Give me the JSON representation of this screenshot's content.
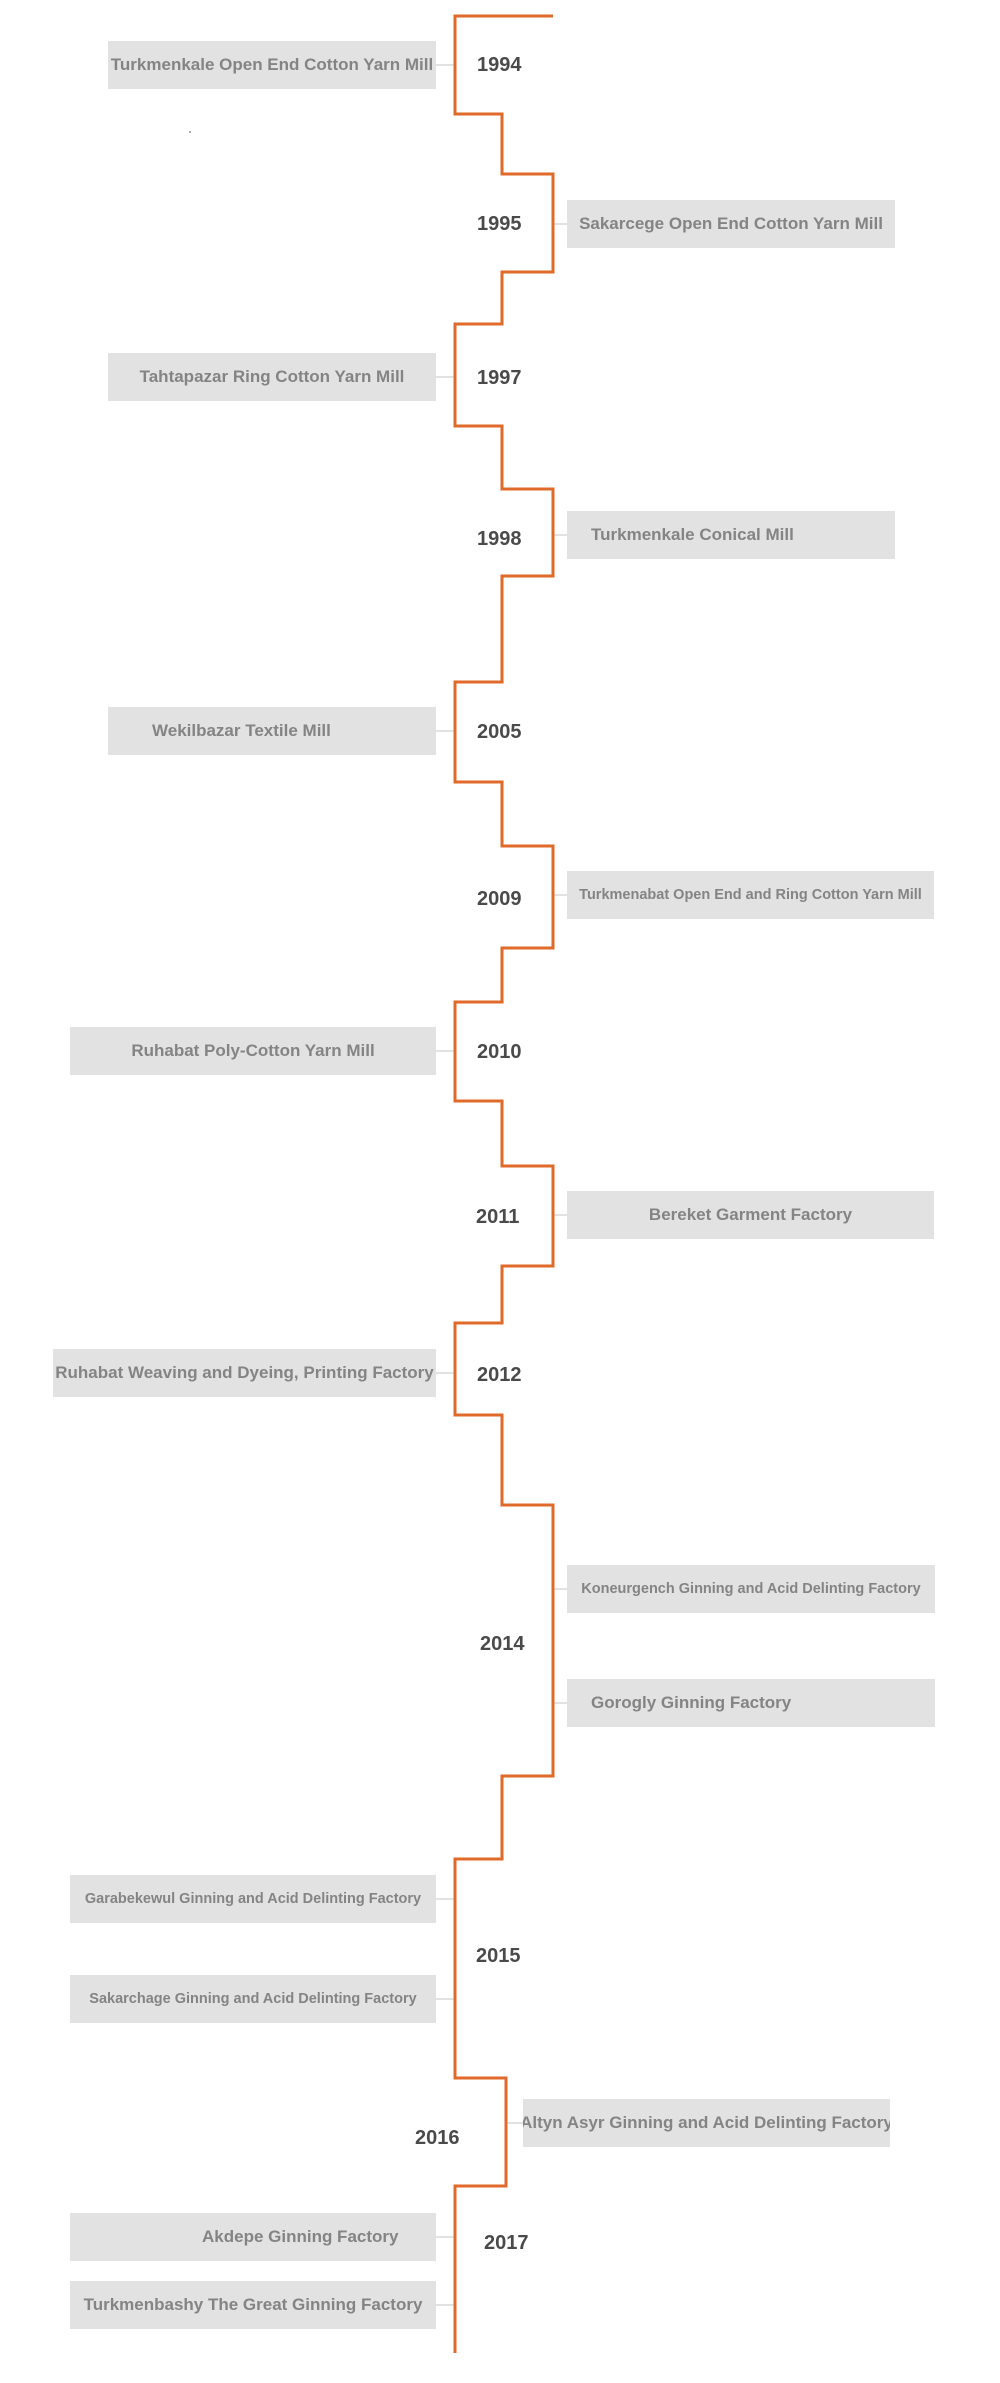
{
  "colors": {
    "line": "#e06a2a",
    "box": "#e2e2e2",
    "text": "#848484",
    "year": "#4a4a4a"
  },
  "timeline": [
    {
      "year": "1994",
      "factories": [
        "Turkmenkale Open End Cotton Yarn Mill"
      ]
    },
    {
      "year": "1995",
      "factories": [
        "Sakarcege Open End Cotton Yarn Mill"
      ]
    },
    {
      "year": "1997",
      "factories": [
        "Tahtapazar Ring Cotton Yarn Mill"
      ]
    },
    {
      "year": "1998",
      "factories": [
        "Turkmenkale Conical Mill"
      ]
    },
    {
      "year": "2005",
      "factories": [
        "Wekilbazar Textile Mill"
      ]
    },
    {
      "year": "2009",
      "factories": [
        "Turkmenabat Open End and Ring Cotton Yarn Mill"
      ]
    },
    {
      "year": "2010",
      "factories": [
        "Ruhabat Poly-Cotton Yarn Mill"
      ]
    },
    {
      "year": "2011",
      "factories": [
        "Bereket Garment Factory"
      ]
    },
    {
      "year": "2012",
      "factories": [
        "Ruhabat Weaving and Dyeing, Printing Factory"
      ]
    },
    {
      "year": "2014",
      "factories": [
        "Koneurgench Ginning and Acid Delinting Factory",
        "Gorogly Ginning Factory"
      ]
    },
    {
      "year": "2015",
      "factories": [
        "Garabekewul Ginning and Acid Delinting Factory",
        "Sakarchage Ginning and Acid Delinting Factory"
      ]
    },
    {
      "year": "2016",
      "factories": [
        "Altyn Asyr Ginning and Acid Delinting Factory"
      ]
    },
    {
      "year": "2017",
      "factories": [
        "Akdepe Ginning Factory",
        "Turkmenbashy The Great Ginning Factory"
      ]
    }
  ]
}
